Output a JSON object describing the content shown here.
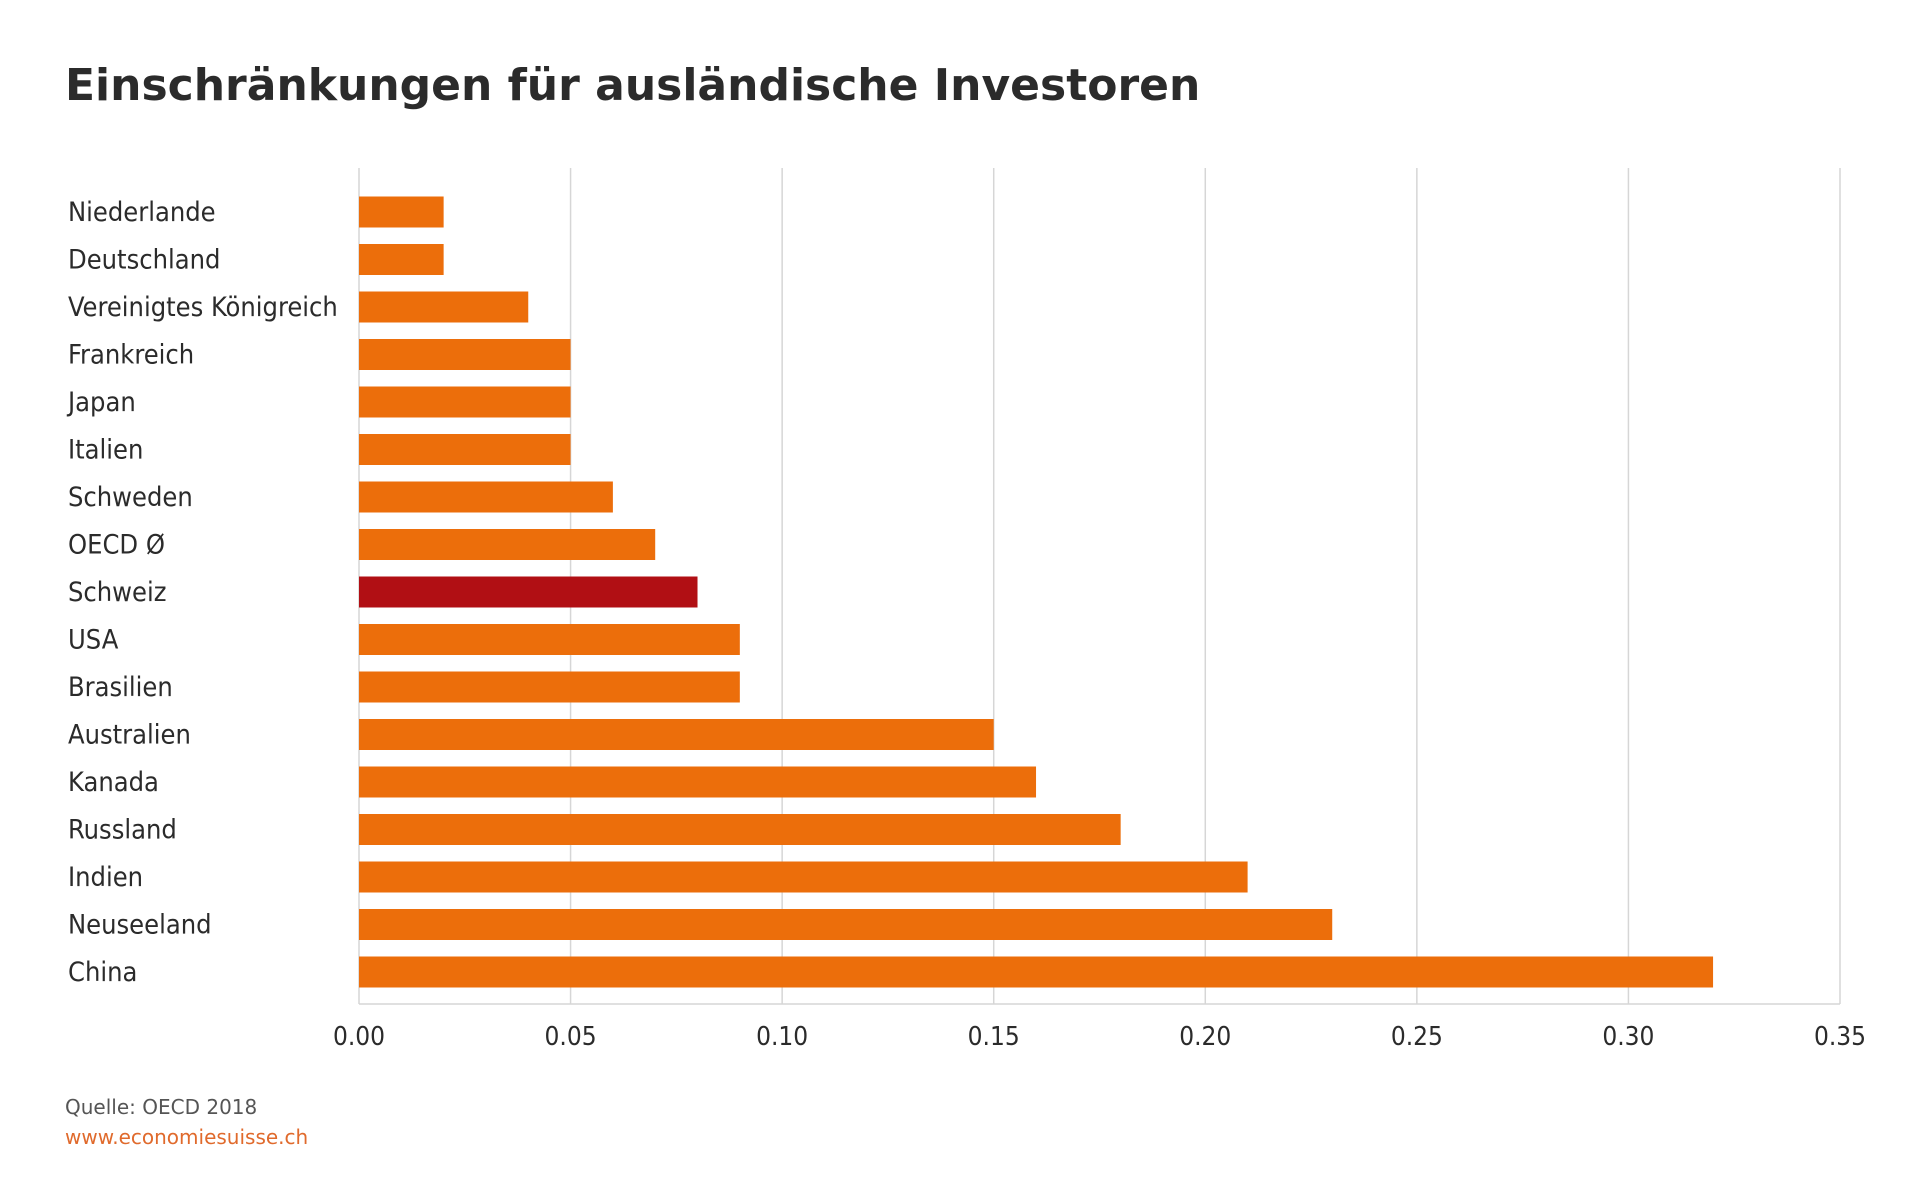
{
  "page": {
    "title": "Einschränkungen für ausländische Investoren",
    "source": "Quelle: OECD 2018",
    "website": "www.economiesuisse.ch"
  },
  "colors": {
    "bar": "#ec6e0b",
    "highlight": "#b10f14",
    "grid": "#d6d6d6",
    "text": "#2b2b2b"
  },
  "chart_data": {
    "type": "bar",
    "orientation": "horizontal",
    "title": "Einschränkungen für ausländische Investoren",
    "xlabel": "",
    "ylabel": "",
    "xlim": [
      0,
      0.35
    ],
    "grid": true,
    "ticks": [
      "0.00",
      "0.05",
      "0.10",
      "0.15",
      "0.20",
      "0.25",
      "0.30",
      "0.35"
    ],
    "tick_values": [
      0,
      0.05,
      0.1,
      0.15,
      0.2,
      0.25,
      0.3,
      0.35
    ],
    "categories": [
      "Niederlande",
      "Deutschland",
      "Vereinigtes Königreich",
      "Frankreich",
      "Japan",
      "Italien",
      "Schweden",
      "OECD Ø",
      "Schweiz",
      "USA",
      "Brasilien",
      "Australien",
      "Kanada",
      "Russland",
      "Indien",
      "Neuseeland",
      "China"
    ],
    "values": [
      0.02,
      0.02,
      0.04,
      0.05,
      0.05,
      0.05,
      0.06,
      0.07,
      0.08,
      0.09,
      0.09,
      0.15,
      0.16,
      0.18,
      0.21,
      0.23,
      0.32
    ],
    "highlight": "Schweiz"
  }
}
